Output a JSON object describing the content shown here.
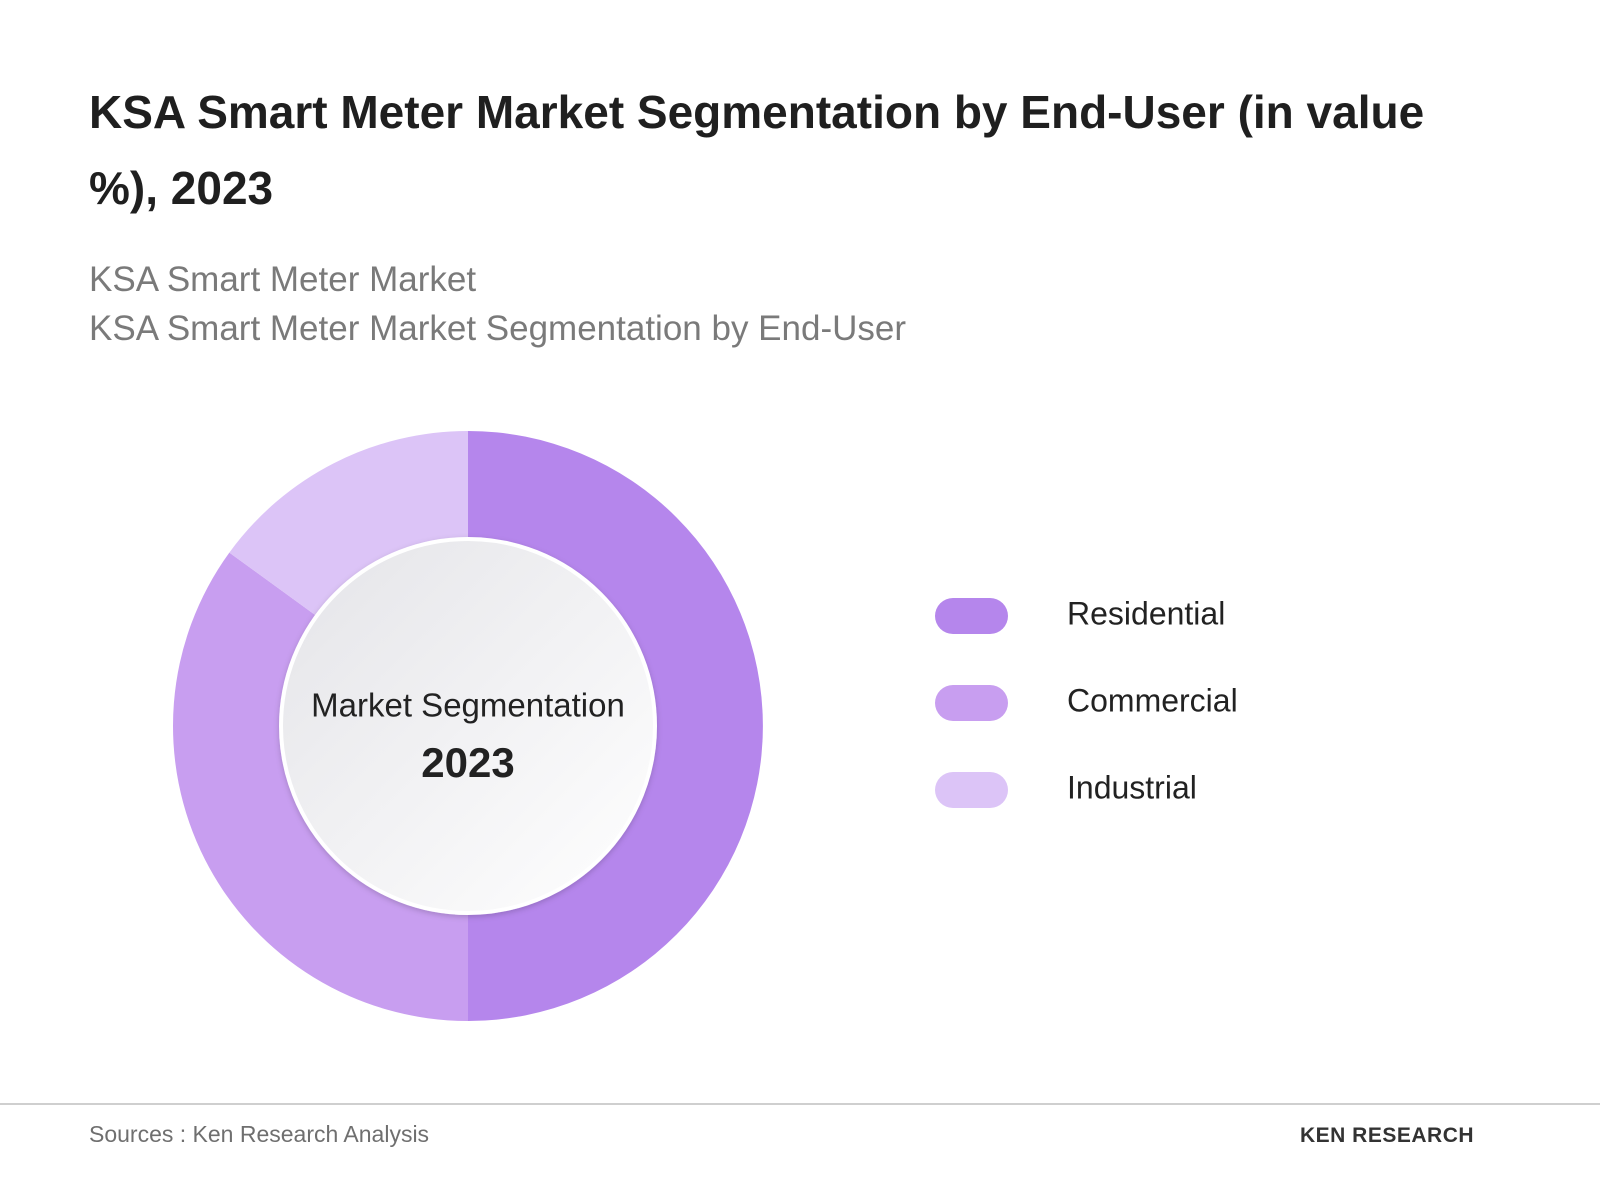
{
  "header": {
    "title": "KSA Smart Meter Market Segmentation by End-User (in value %), 2023",
    "subtitle": [
      "KSA Smart Meter Market",
      "KSA Smart Meter Market Segmentation by End-User"
    ]
  },
  "chart_data": {
    "type": "donut",
    "center_label": "Market Segmentation",
    "center_year": "2023",
    "categories": [
      "Residential",
      "Commercial",
      "Industrial"
    ],
    "values": [
      50,
      35,
      15
    ],
    "colors": [
      "#b586ec",
      "#c89ef0",
      "#dcc4f7"
    ]
  },
  "footer": {
    "source": "Sources : Ken Research Analysis",
    "logo": "KEN RESEARCH"
  }
}
